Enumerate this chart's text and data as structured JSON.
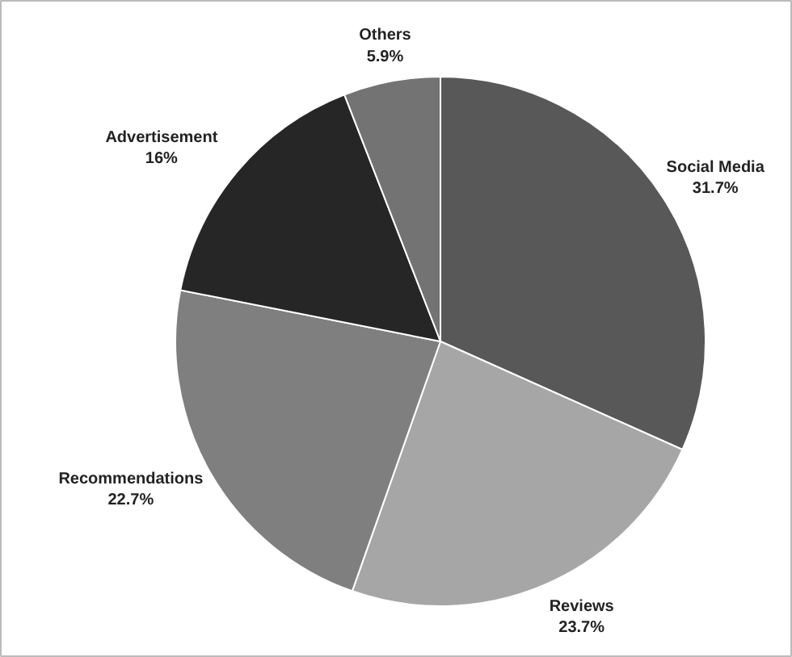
{
  "chart_data": {
    "type": "pie",
    "categories": [
      "Social Media",
      "Reviews",
      "Recommendations",
      "Advertisement",
      "Others"
    ],
    "values": [
      31.7,
      23.7,
      22.7,
      16,
      5.9
    ],
    "colors": [
      "#585858",
      "#a6a6a6",
      "#7f7f7f",
      "#262626",
      "#737373"
    ],
    "value_labels": [
      "31.7%",
      "23.7%",
      "22.7%",
      "16%",
      "5.9%"
    ]
  }
}
